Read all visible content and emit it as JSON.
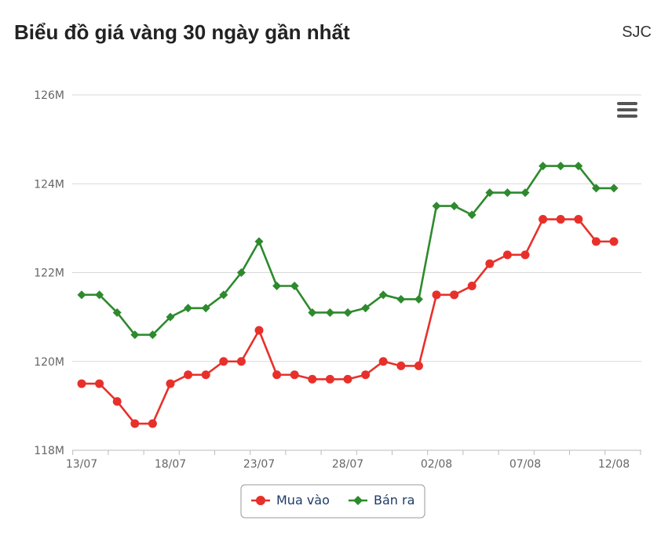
{
  "header": {
    "title": "Biểu đồ giá vàng 30 ngày gần nhất",
    "brand": "SJC"
  },
  "colors": {
    "buy": "#e8302a",
    "sell": "#2d8a2d",
    "grid": "#d8d8d8",
    "axis_text": "#666666",
    "menu_icon": "#555555"
  },
  "chart_data": {
    "type": "line",
    "xlabel": "",
    "ylabel": "",
    "ylim": [
      118,
      126
    ],
    "yticks": [
      118,
      120,
      122,
      124,
      126
    ],
    "ytick_labels": [
      "118M",
      "120M",
      "122M",
      "124M",
      "126M"
    ],
    "grid": true,
    "legend_position": "bottom-center",
    "x": [
      "13/07",
      "14/07",
      "15/07",
      "16/07",
      "17/07",
      "18/07",
      "19/07",
      "20/07",
      "21/07",
      "22/07",
      "23/07",
      "24/07",
      "25/07",
      "26/07",
      "27/07",
      "28/07",
      "29/07",
      "30/07",
      "31/07",
      "01/08",
      "02/08",
      "03/08",
      "04/08",
      "05/08",
      "06/08",
      "07/08",
      "08/08",
      "09/08",
      "10/08",
      "11/08",
      "12/08"
    ],
    "xtick_labels": [
      "13/07",
      "18/07",
      "23/07",
      "28/07",
      "02/08",
      "07/08",
      "12/08"
    ],
    "series": [
      {
        "name": "Mua vào",
        "color": "#e8302a",
        "marker": "circle",
        "values": [
          119.5,
          119.5,
          119.1,
          118.6,
          118.6,
          119.5,
          119.7,
          119.7,
          120.0,
          120.0,
          120.7,
          119.7,
          119.7,
          119.6,
          119.6,
          119.6,
          119.7,
          120.0,
          119.9,
          119.9,
          121.5,
          121.5,
          121.7,
          122.2,
          122.4,
          122.4,
          123.2,
          123.2,
          123.2,
          122.7,
          122.7
        ]
      },
      {
        "name": "Bán ra",
        "color": "#2d8a2d",
        "marker": "diamond",
        "values": [
          121.5,
          121.5,
          121.1,
          120.6,
          120.6,
          121.0,
          121.2,
          121.2,
          121.5,
          122.0,
          122.7,
          121.7,
          121.7,
          121.1,
          121.1,
          121.1,
          121.2,
          121.5,
          121.4,
          121.4,
          123.5,
          123.5,
          123.3,
          123.8,
          123.8,
          123.8,
          124.4,
          124.4,
          124.4,
          123.9,
          123.9
        ]
      }
    ]
  }
}
